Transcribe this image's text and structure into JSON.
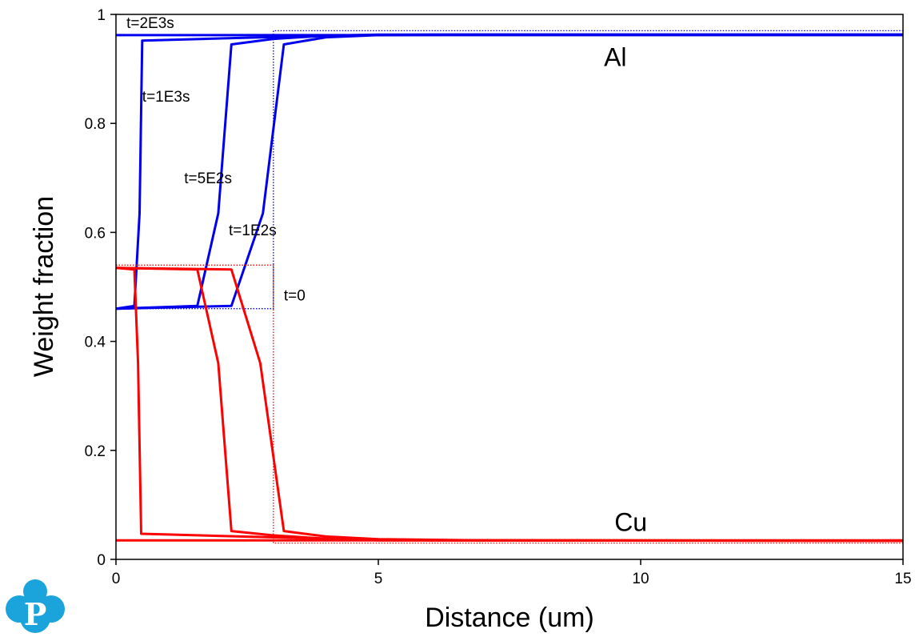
{
  "chart_data": {
    "type": "line",
    "title": "",
    "xlabel": "Distance (um)",
    "ylabel": "Weight fraction",
    "xlim": [
      0,
      15
    ],
    "ylim": [
      0,
      1
    ],
    "xticks": [
      0,
      5,
      10,
      15
    ],
    "xtick_labels": [
      "0",
      "5",
      "10",
      "15"
    ],
    "yticks": [
      0,
      0.2,
      0.4,
      0.6,
      0.8,
      1
    ],
    "ytick_labels": [
      "0",
      "0.2",
      "0.4",
      "0.6",
      "0.8",
      "1"
    ],
    "grid": false,
    "colors": {
      "Al": "#0000ee",
      "Cu": "#ff0000"
    },
    "series": [
      {
        "name": "Al t=0",
        "species": "Al",
        "time": "t=0",
        "style": "dotted",
        "x": [
          0,
          3,
          3,
          15
        ],
        "y": [
          0.46,
          0.46,
          0.97,
          0.97
        ]
      },
      {
        "name": "Al t=1E2s",
        "species": "Al",
        "time": "t=1E2s",
        "style": "solid",
        "x": [
          0,
          2.2,
          2.8,
          3.2,
          4,
          5,
          7,
          15
        ],
        "y": [
          0.46,
          0.465,
          0.635,
          0.945,
          0.958,
          0.962,
          0.963,
          0.963
        ]
      },
      {
        "name": "Al t=5E2s",
        "species": "Al",
        "time": "t=5E2s",
        "style": "solid",
        "x": [
          0,
          1.55,
          1.95,
          2.2,
          3,
          4,
          5,
          15
        ],
        "y": [
          0.46,
          0.465,
          0.635,
          0.945,
          0.955,
          0.961,
          0.963,
          0.963
        ]
      },
      {
        "name": "Al t=1E3s",
        "species": "Al",
        "time": "t=1E3s",
        "style": "solid",
        "x": [
          0,
          0.35,
          0.45,
          0.5,
          2,
          4,
          6,
          15
        ],
        "y": [
          0.46,
          0.465,
          0.635,
          0.952,
          0.956,
          0.961,
          0.963,
          0.963
        ]
      },
      {
        "name": "Al t=2E3s",
        "species": "Al",
        "time": "t=2E3s",
        "style": "solid",
        "x": [
          0,
          15
        ],
        "y": [
          0.962,
          0.962
        ]
      },
      {
        "name": "Cu t=0",
        "species": "Cu",
        "time": "t=0",
        "style": "dotted",
        "x": [
          0,
          3,
          3,
          15
        ],
        "y": [
          0.54,
          0.54,
          0.03,
          0.03
        ]
      },
      {
        "name": "Cu t=1E2s",
        "species": "Cu",
        "time": "t=1E2s",
        "style": "solid",
        "x": [
          0,
          2.2,
          2.75,
          3.2,
          4,
          5,
          7,
          15
        ],
        "y": [
          0.535,
          0.532,
          0.36,
          0.052,
          0.042,
          0.037,
          0.035,
          0.034
        ]
      },
      {
        "name": "Cu t=5E2s",
        "species": "Cu",
        "time": "t=5E2s",
        "style": "solid",
        "x": [
          0,
          1.55,
          1.95,
          2.2,
          3,
          4,
          5,
          15
        ],
        "y": [
          0.535,
          0.532,
          0.36,
          0.052,
          0.044,
          0.038,
          0.035,
          0.034
        ]
      },
      {
        "name": "Cu t=1E3s",
        "species": "Cu",
        "time": "t=1E3s",
        "style": "solid",
        "x": [
          0,
          0.35,
          0.42,
          0.48,
          2,
          4,
          6,
          15
        ],
        "y": [
          0.535,
          0.532,
          0.36,
          0.047,
          0.043,
          0.038,
          0.035,
          0.034
        ]
      },
      {
        "name": "Cu t=2E3s",
        "species": "Cu",
        "time": "t=2E3s",
        "style": "solid",
        "x": [
          0,
          15
        ],
        "y": [
          0.035,
          0.035
        ]
      }
    ],
    "annotations": [
      {
        "text": "t=2E3s",
        "x": 0.2,
        "y": 0.975
      },
      {
        "text": "t=1E3s",
        "x": 0.5,
        "y": 0.84
      },
      {
        "text": "t=5E2s",
        "x": 1.3,
        "y": 0.69
      },
      {
        "text": "t=1E2s",
        "x": 2.15,
        "y": 0.595
      },
      {
        "text": "t=0",
        "x": 3.2,
        "y": 0.475
      },
      {
        "text": "Al",
        "x": 9.3,
        "y": 0.905,
        "big": true
      },
      {
        "text": "Cu",
        "x": 9.5,
        "y": 0.052,
        "big": true
      }
    ]
  },
  "logo": {
    "letter": "P",
    "color": "#1ba3dc"
  }
}
